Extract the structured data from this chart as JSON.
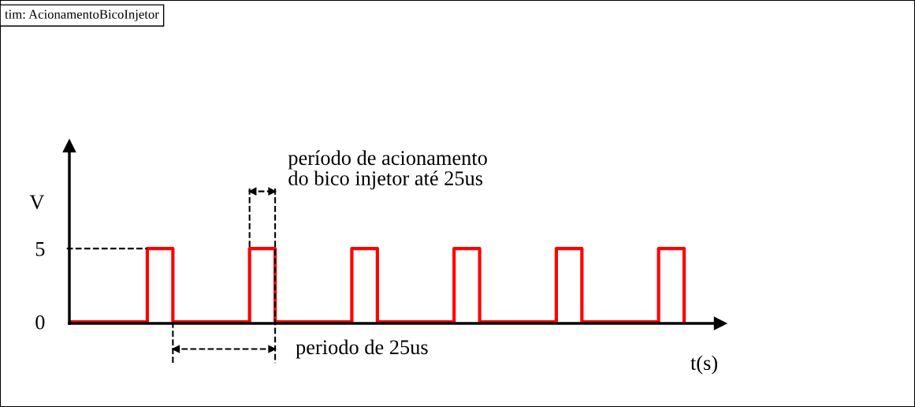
{
  "chart_data": {
    "type": "step",
    "title": "tim: AcionamentoBicoInjetor",
    "xlabel": "t(s)",
    "ylabel": "V",
    "categories": [
      null,
      null,
      null,
      null,
      null,
      null,
      null,
      null,
      null,
      null,
      null,
      null,
      null,
      null,
      null,
      null,
      null,
      null,
      null,
      null,
      null,
      null,
      null,
      null,
      null
    ],
    "series": [
      {
        "color": "#ff0000",
        "values": [
          0,
          0,
          0,
          5,
          0,
          0,
          0,
          5,
          0,
          0,
          0,
          5,
          0,
          0,
          0,
          5,
          0,
          0,
          0,
          5,
          0,
          0,
          0,
          5,
          0
        ]
      }
    ],
    "ylim": [
      -0.1,
      12
    ],
    "yticks": [
      0,
      5
    ],
    "ref_lines": [
      {
        "axis": "y",
        "value": 5,
        "color": "#000000",
        "line_style": "dashed"
      }
    ],
    "annotations": [
      "período de acionamento\ndo bico injetor até 25us",
      "periodo de 25us"
    ],
    "grid": false,
    "line_style": "solid",
    "marker": "none"
  }
}
